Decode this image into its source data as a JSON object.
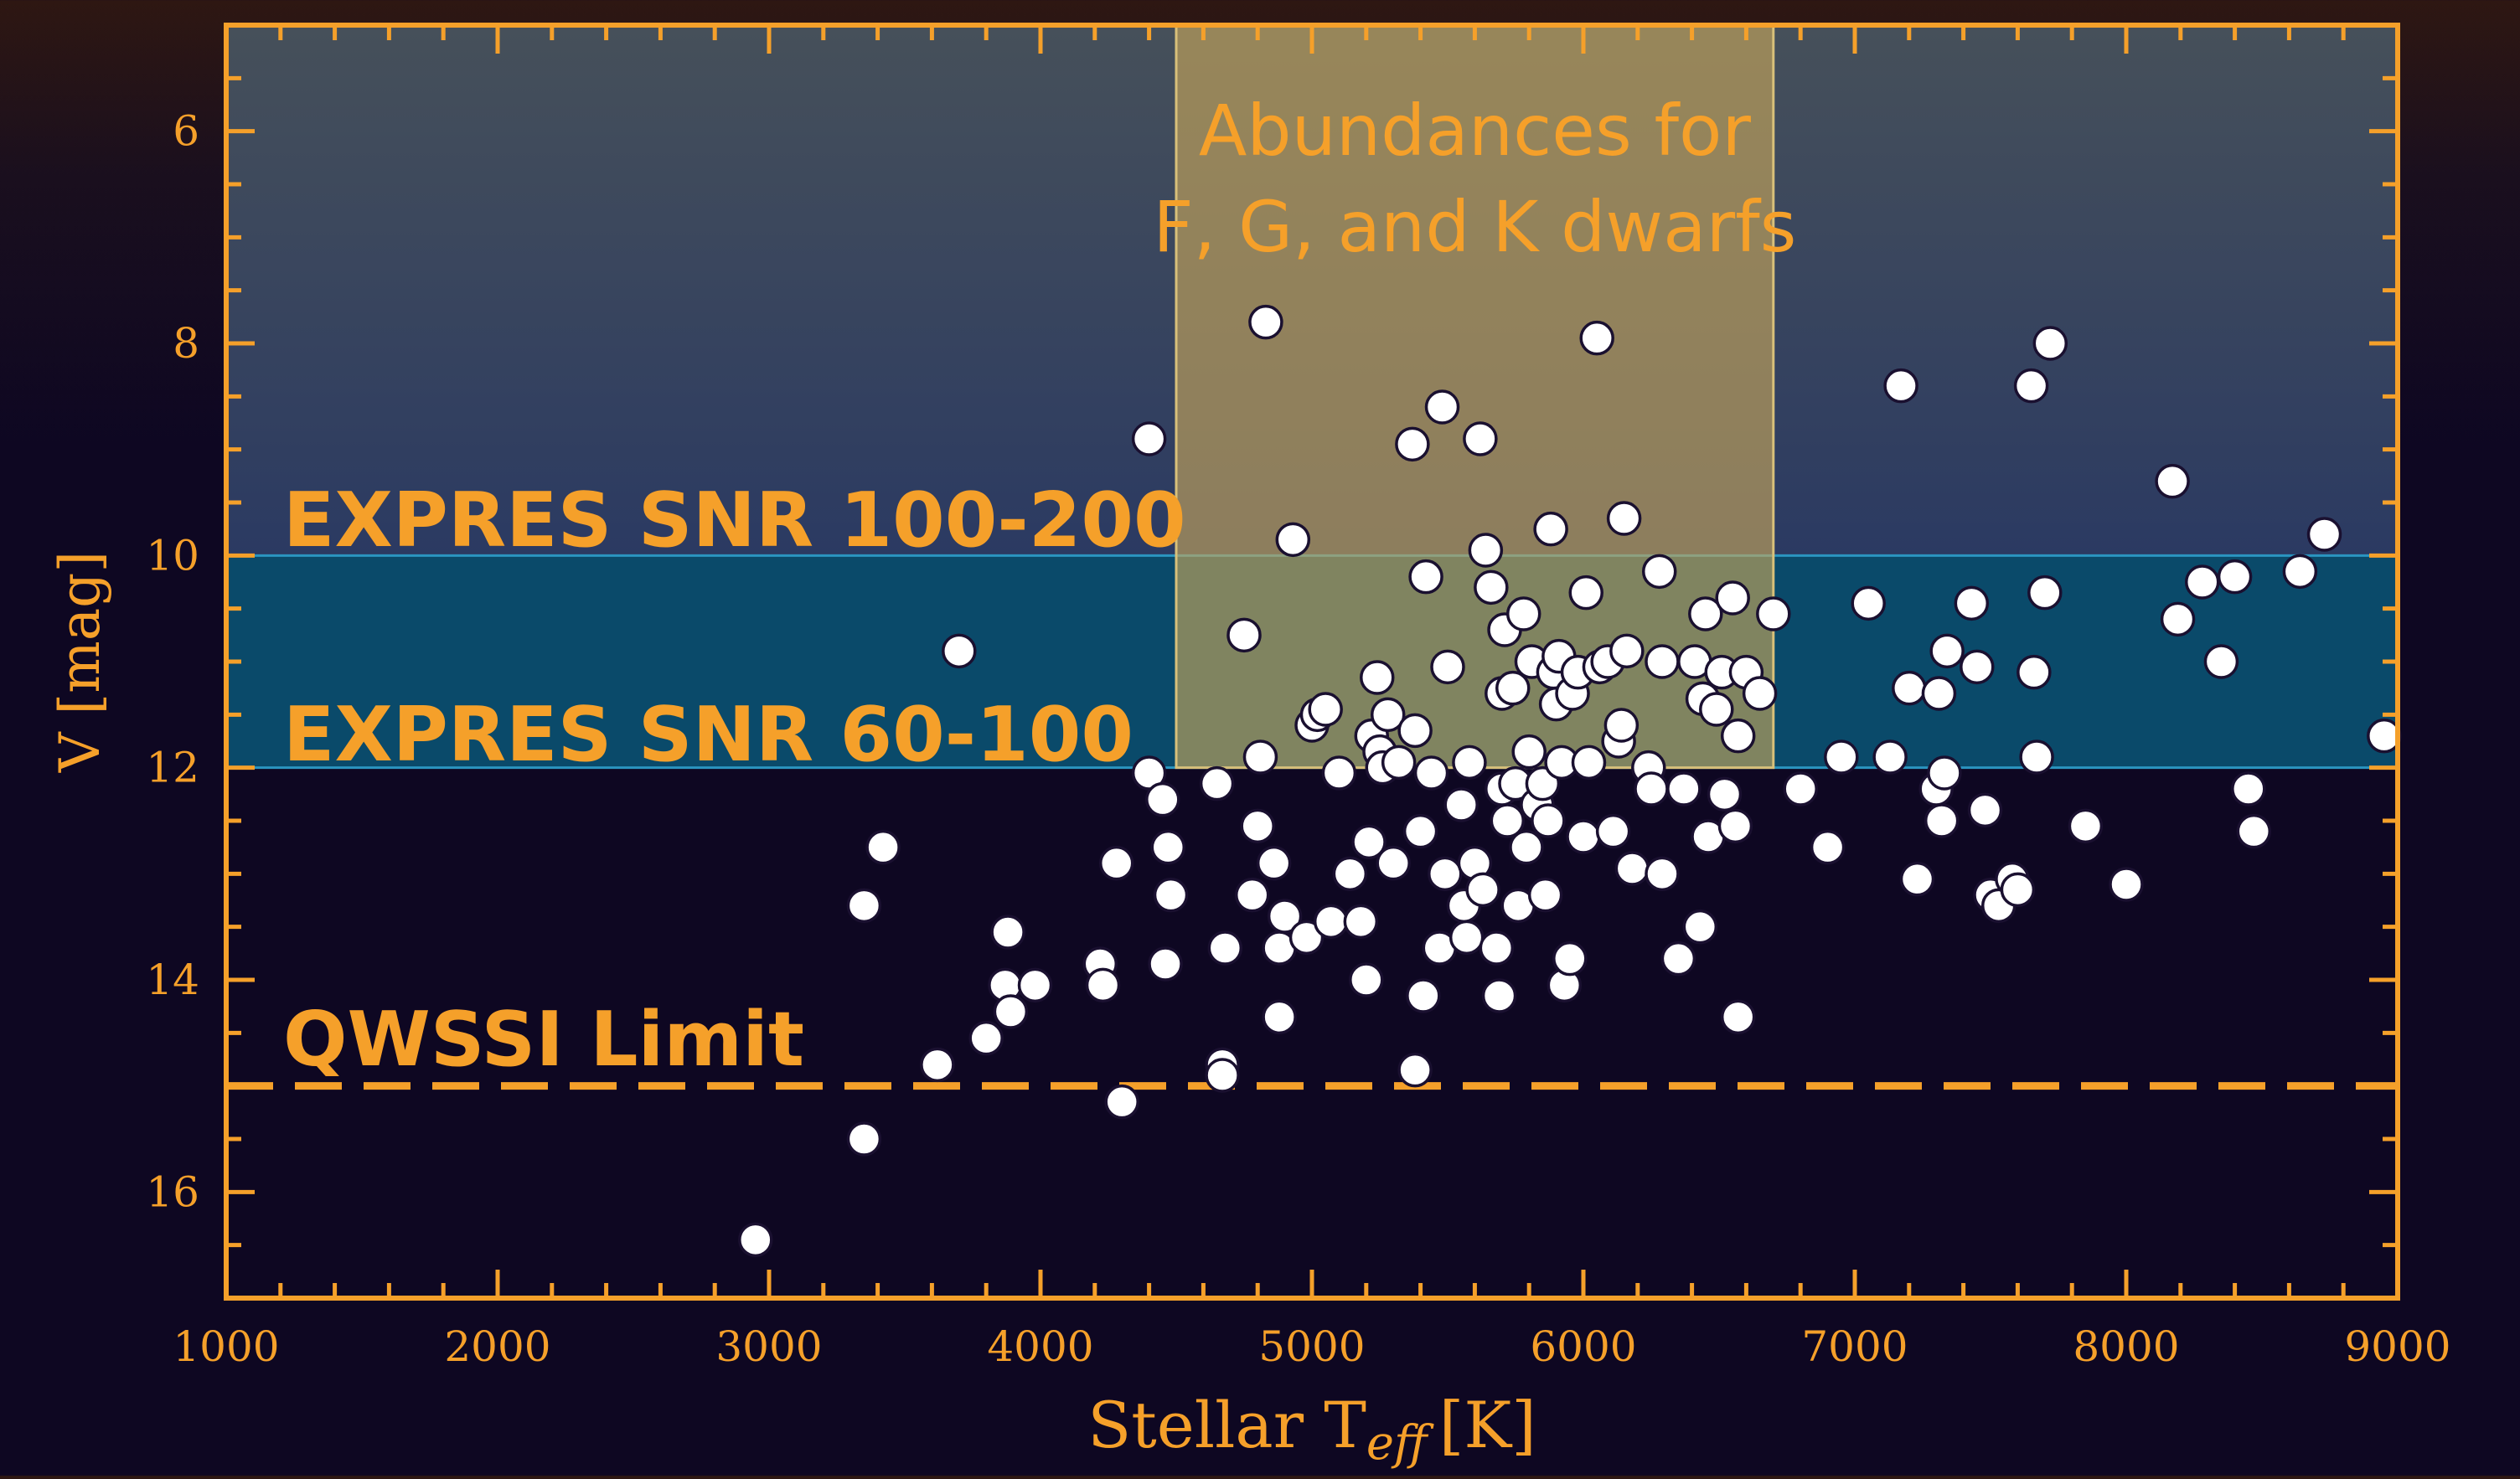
{
  "chart_data": {
    "type": "scatter",
    "title": "",
    "xlabel_main": "Stellar T",
    "xlabel_sub": "eff",
    "xlabel_unit": "[K]",
    "ylabel": "V [mag]",
    "xlim": [
      1000,
      9000
    ],
    "ylim": [
      17,
      5
    ],
    "y_inverted": true,
    "x_ticks": [
      "1000",
      "2000",
      "3000",
      "4000",
      "5000",
      "6000",
      "7000",
      "8000",
      "9000"
    ],
    "x_tick_values": [
      1000,
      2000,
      3000,
      4000,
      5000,
      6000,
      7000,
      8000,
      9000
    ],
    "y_ticks": [
      "6",
      "8",
      "10",
      "12",
      "14",
      "16"
    ],
    "y_tick_values": [
      6,
      8,
      10,
      12,
      14,
      16
    ],
    "regions": [
      {
        "name": "snr-100-200",
        "label": "EXPRES SNR 100-200",
        "y_range": [
          5,
          10
        ]
      },
      {
        "name": "snr-60-100",
        "label": "EXPRES SNR 60-100",
        "y_range": [
          10,
          12
        ]
      },
      {
        "name": "abundances-box",
        "label_line1": "Abundances for",
        "label_line2": "F, G, and K dwarfs",
        "x_range": [
          4500,
          6700
        ],
        "y_range": [
          5,
          12
        ]
      }
    ],
    "limit_line": {
      "label": "QWSSI Limit",
      "y": 15
    },
    "colors": {
      "axis": "#f5a02a",
      "snr_top_start": "#414a57",
      "snr_top_end": "#2c3a60",
      "snr_band": "#0a4a6a",
      "snr_band_edge": "#2b95c0",
      "abundance_box": "#c9a85a",
      "marker_fill": "#ffffff",
      "marker_edge": "#1a1030"
    },
    "points": [
      [
        2950,
        16.45
      ],
      [
        3350,
        15.5
      ],
      [
        3350,
        13.3
      ],
      [
        3420,
        12.75
      ],
      [
        3620,
        14.8
      ],
      [
        3700,
        10.9
      ],
      [
        3800,
        14.55
      ],
      [
        3870,
        14.05
      ],
      [
        3880,
        13.55
      ],
      [
        3890,
        14.3
      ],
      [
        3980,
        14.05
      ],
      [
        4220,
        13.85
      ],
      [
        4230,
        14.05
      ],
      [
        4280,
        12.9
      ],
      [
        4300,
        15.15
      ],
      [
        4400,
        8.9
      ],
      [
        4400,
        12.05
      ],
      [
        4450,
        12.3
      ],
      [
        4460,
        13.85
      ],
      [
        4470,
        12.75
      ],
      [
        4480,
        13.2
      ],
      [
        4650,
        12.15
      ],
      [
        4670,
        14.8
      ],
      [
        4670,
        14.9
      ],
      [
        4680,
        13.7
      ],
      [
        4750,
        10.75
      ],
      [
        4780,
        13.2
      ],
      [
        4800,
        12.55
      ],
      [
        4810,
        11.9
      ],
      [
        4830,
        7.8
      ],
      [
        4860,
        12.9
      ],
      [
        4880,
        13.7
      ],
      [
        4880,
        14.35
      ],
      [
        4900,
        13.4
      ],
      [
        4930,
        9.85
      ],
      [
        4980,
        13.6
      ],
      [
        5000,
        11.6
      ],
      [
        5020,
        11.5
      ],
      [
        5050,
        11.45
      ],
      [
        5070,
        13.45
      ],
      [
        5100,
        12.05
      ],
      [
        5140,
        13.0
      ],
      [
        5180,
        13.45
      ],
      [
        5200,
        14.0
      ],
      [
        5210,
        12.7
      ],
      [
        5220,
        11.7
      ],
      [
        5240,
        11.15
      ],
      [
        5250,
        11.85
      ],
      [
        5260,
        12.0
      ],
      [
        5280,
        11.5
      ],
      [
        5300,
        12.9
      ],
      [
        5320,
        11.95
      ],
      [
        5370,
        8.95
      ],
      [
        5380,
        11.65
      ],
      [
        5380,
        14.85
      ],
      [
        5400,
        12.6
      ],
      [
        5410,
        14.15
      ],
      [
        5420,
        10.2
      ],
      [
        5440,
        12.05
      ],
      [
        5470,
        13.7
      ],
      [
        5480,
        8.6
      ],
      [
        5490,
        13.0
      ],
      [
        5500,
        11.05
      ],
      [
        5550,
        12.35
      ],
      [
        5560,
        13.3
      ],
      [
        5570,
        13.6
      ],
      [
        5580,
        11.95
      ],
      [
        5600,
        12.9
      ],
      [
        5620,
        8.9
      ],
      [
        5630,
        13.15
      ],
      [
        5640,
        9.95
      ],
      [
        5660,
        10.3
      ],
      [
        5680,
        13.7
      ],
      [
        5690,
        14.15
      ],
      [
        5700,
        12.2
      ],
      [
        5700,
        11.3
      ],
      [
        5710,
        10.7
      ],
      [
        5720,
        12.5
      ],
      [
        5740,
        11.25
      ],
      [
        5750,
        12.15
      ],
      [
        5760,
        13.3
      ],
      [
        5780,
        10.55
      ],
      [
        5790,
        12.75
      ],
      [
        5800,
        11.85
      ],
      [
        5810,
        11.0
      ],
      [
        5830,
        12.35
      ],
      [
        5850,
        12.15
      ],
      [
        5860,
        13.2
      ],
      [
        5870,
        12.5
      ],
      [
        5880,
        9.75
      ],
      [
        5890,
        11.1
      ],
      [
        5900,
        11.4
      ],
      [
        5910,
        10.95
      ],
      [
        5920,
        11.95
      ],
      [
        5930,
        14.05
      ],
      [
        5950,
        13.8
      ],
      [
        5960,
        11.3
      ],
      [
        5980,
        11.1
      ],
      [
        6000,
        12.65
      ],
      [
        6010,
        10.35
      ],
      [
        6020,
        11.95
      ],
      [
        6050,
        7.95
      ],
      [
        6060,
        11.05
      ],
      [
        6090,
        11.0
      ],
      [
        6110,
        12.6
      ],
      [
        6130,
        11.75
      ],
      [
        6140,
        11.6
      ],
      [
        6150,
        9.65
      ],
      [
        6160,
        10.9
      ],
      [
        6180,
        12.95
      ],
      [
        6240,
        12.0
      ],
      [
        6250,
        12.2
      ],
      [
        6280,
        10.15
      ],
      [
        6290,
        11.0
      ],
      [
        6290,
        13.0
      ],
      [
        6350,
        13.8
      ],
      [
        6370,
        12.2
      ],
      [
        6410,
        11.0
      ],
      [
        6430,
        13.5
      ],
      [
        6440,
        11.35
      ],
      [
        6450,
        10.55
      ],
      [
        6460,
        12.65
      ],
      [
        6490,
        11.45
      ],
      [
        6510,
        11.1
      ],
      [
        6520,
        12.25
      ],
      [
        6550,
        10.4
      ],
      [
        6560,
        12.55
      ],
      [
        6570,
        11.7
      ],
      [
        6570,
        14.35
      ],
      [
        6600,
        11.1
      ],
      [
        6650,
        11.3
      ],
      [
        6700,
        10.55
      ],
      [
        6800,
        12.2
      ],
      [
        6900,
        12.75
      ],
      [
        6950,
        11.9
      ],
      [
        7050,
        10.45
      ],
      [
        7130,
        11.9
      ],
      [
        7170,
        8.4
      ],
      [
        7200,
        11.25
      ],
      [
        7230,
        13.05
      ],
      [
        7300,
        12.2
      ],
      [
        7310,
        11.3
      ],
      [
        7320,
        12.5
      ],
      [
        7330,
        12.05
      ],
      [
        7340,
        10.9
      ],
      [
        7430,
        10.45
      ],
      [
        7450,
        11.05
      ],
      [
        7480,
        12.4
      ],
      [
        7500,
        13.2
      ],
      [
        7530,
        13.3
      ],
      [
        7580,
        13.05
      ],
      [
        7600,
        13.15
      ],
      [
        7650,
        8.4
      ],
      [
        7660,
        11.1
      ],
      [
        7670,
        11.9
      ],
      [
        7700,
        10.35
      ],
      [
        7720,
        8.0
      ],
      [
        7850,
        12.55
      ],
      [
        8000,
        13.1
      ],
      [
        8170,
        9.3
      ],
      [
        8190,
        10.6
      ],
      [
        8280,
        10.25
      ],
      [
        8350,
        11.0
      ],
      [
        8400,
        10.2
      ],
      [
        8450,
        12.2
      ],
      [
        8470,
        12.6
      ],
      [
        8640,
        10.15
      ],
      [
        8730,
        9.8
      ],
      [
        8950,
        11.7
      ]
    ]
  }
}
